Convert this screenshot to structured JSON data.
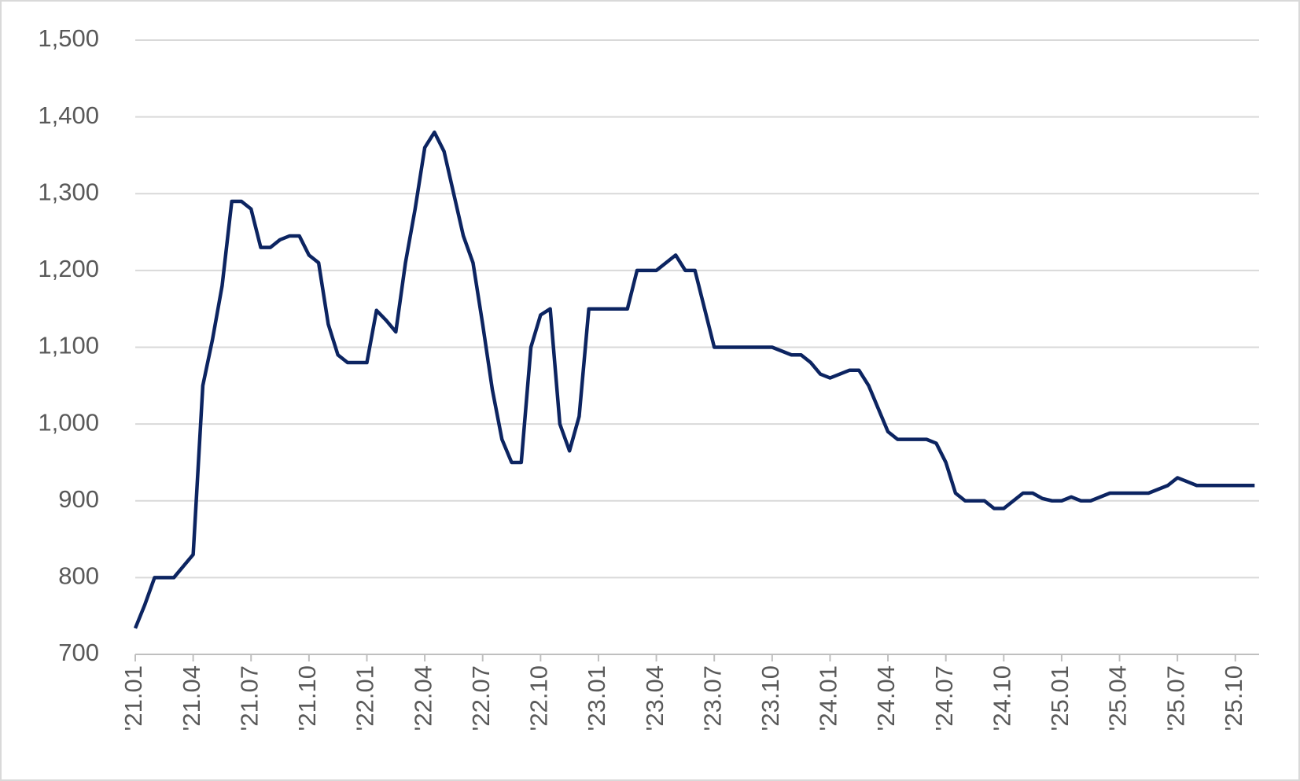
{
  "chart_data": {
    "type": "line",
    "categories": [
      "'21.01",
      null,
      null,
      null,
      null,
      null,
      "'21.04",
      null,
      null,
      null,
      null,
      null,
      "'21.07",
      null,
      null,
      null,
      null,
      null,
      "'21.10",
      null,
      null,
      null,
      null,
      null,
      "'22.01",
      null,
      null,
      null,
      null,
      null,
      "'22.04",
      null,
      null,
      null,
      null,
      null,
      "'22.07",
      null,
      null,
      null,
      null,
      null,
      "'22.10",
      null,
      null,
      null,
      null,
      null,
      "'23.01",
      null,
      null,
      null,
      null,
      null,
      "'23.04",
      null,
      null,
      null,
      null,
      null,
      "'23.07",
      null,
      null,
      null,
      null,
      null,
      "'23.10",
      null,
      null,
      null,
      null,
      null,
      "'24.01",
      null,
      null,
      null,
      null,
      null,
      "'24.04",
      null,
      null,
      null,
      null,
      null,
      "'24.07",
      null,
      null,
      null,
      null,
      null,
      "'24.10",
      null,
      null,
      null,
      null,
      null,
      "'25.01",
      null,
      null,
      null,
      null,
      null,
      "'25.04",
      null,
      null,
      null,
      null,
      null,
      "'25.07",
      null,
      null,
      null,
      null,
      null,
      "'25.10",
      null,
      null
    ],
    "values": [
      734,
      765,
      800,
      800,
      800,
      815,
      830,
      1050,
      1110,
      1180,
      1290,
      1290,
      1280,
      1230,
      1230,
      1240,
      1245,
      1245,
      1220,
      1210,
      1130,
      1090,
      1080,
      1080,
      1080,
      1148,
      1135,
      1120,
      1210,
      1280,
      1360,
      1380,
      1355,
      1300,
      1245,
      1210,
      1130,
      1045,
      980,
      950,
      950,
      1100,
      1142,
      1150,
      1000,
      965,
      1010,
      1150,
      1150,
      1150,
      1150,
      1150,
      1200,
      1200,
      1200,
      1210,
      1220,
      1200,
      1200,
      1150,
      1100,
      1100,
      1100,
      1100,
      1100,
      1100,
      1100,
      1095,
      1090,
      1090,
      1080,
      1065,
      1060,
      1065,
      1070,
      1070,
      1050,
      1020,
      990,
      980,
      980,
      980,
      980,
      975,
      950,
      910,
      900,
      900,
      900,
      890,
      890,
      900,
      910,
      910,
      903,
      900,
      900,
      905,
      900,
      900,
      905,
      910,
      910,
      910,
      910,
      910,
      915,
      920,
      930,
      925,
      920,
      920,
      920,
      920,
      920,
      920,
      920
    ],
    "color": "#0c2461",
    "ylim": [
      700,
      1500
    ],
    "yticks": [
      700,
      800,
      900,
      {
        "value": 1000,
        "label": "1,000"
      },
      {
        "value": 1100,
        "label": "1,100"
      },
      {
        "value": 1200,
        "label": "1,200"
      },
      {
        "value": 1300,
        "label": "1,300"
      },
      {
        "value": 1400,
        "label": "1,400"
      },
      {
        "value": 1500,
        "label": "1,500"
      }
    ],
    "grid": true
  }
}
